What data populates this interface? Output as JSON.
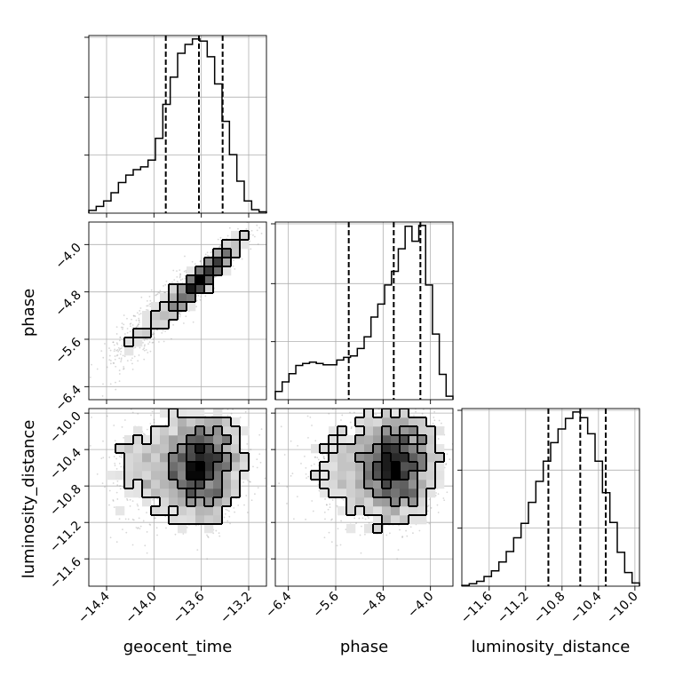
{
  "chart_data": {
    "type": "corner",
    "parameters": [
      "geocent_time",
      "phase",
      "luminosity_distance"
    ],
    "axis_labels": {
      "geocent_time": "geocent_time",
      "phase": "phase",
      "luminosity_distance": "luminosity_distance"
    },
    "ranges": {
      "geocent_time": [
        -14.55,
        -13.05
      ],
      "phase": [
        -6.62,
        -3.62
      ],
      "luminosity_distance": [
        -11.9,
        -9.95
      ]
    },
    "ticks": {
      "geocent_time": [
        -14.4,
        -14.0,
        -13.6,
        -13.2
      ],
      "phase": [
        -6.4,
        -5.6,
        -4.8,
        -4.0
      ],
      "luminosity_distance": [
        -11.6,
        -11.2,
        -10.8,
        -10.4,
        -10.0
      ]
    },
    "tick_labels": {
      "geocent_time": [
        "−14.4",
        "−14.0",
        "−13.6",
        "−13.2"
      ],
      "phase": [
        "−6.4",
        "−5.6",
        "−4.8",
        "−4.0"
      ],
      "luminosity_distance": [
        "−11.6",
        "−11.2",
        "−10.8",
        "−10.4",
        "−10.0"
      ]
    },
    "quantiles": {
      "geocent_time": [
        -13.9,
        -13.62,
        -13.42
      ],
      "phase": [
        -5.38,
        -4.62,
        -4.17
      ],
      "luminosity_distance": [
        -10.95,
        -10.6,
        -10.32
      ]
    },
    "histograms": {
      "geocent_time": [
        0.4,
        1.0,
        1.8,
        3.0,
        4.5,
        5.6,
        6.4,
        6.8,
        7.8,
        11.0,
        16.0,
        20.0,
        23.5,
        24.8,
        25.6,
        25.3,
        23.0,
        19.0,
        13.5,
        8.6,
        4.7,
        1.8,
        0.5,
        0.2
      ],
      "phase": [
        1.2,
        2.6,
        3.8,
        5.0,
        5.3,
        5.5,
        5.3,
        5.1,
        5.1,
        5.8,
        6.2,
        6.4,
        7.5,
        9.2,
        12.1,
        14.0,
        16.8,
        18.8,
        22.1,
        25.4,
        23.2,
        25.5,
        16.8,
        9.6,
        3.7,
        0.5
      ],
      "luminosity_distance": [
        0.1,
        0.3,
        0.6,
        1.2,
        1.9,
        3.0,
        4.3,
        6.0,
        7.8,
        10.4,
        13.0,
        15.5,
        17.8,
        19.5,
        20.8,
        21.6,
        20.9,
        18.9,
        15.5,
        11.6,
        7.9,
        4.2,
        1.7,
        0.4
      ]
    },
    "contour_levels": [
      0.118,
      0.393,
      0.675,
      0.864
    ],
    "grid": true,
    "title": "",
    "xlabel": "",
    "ylabel": ""
  }
}
